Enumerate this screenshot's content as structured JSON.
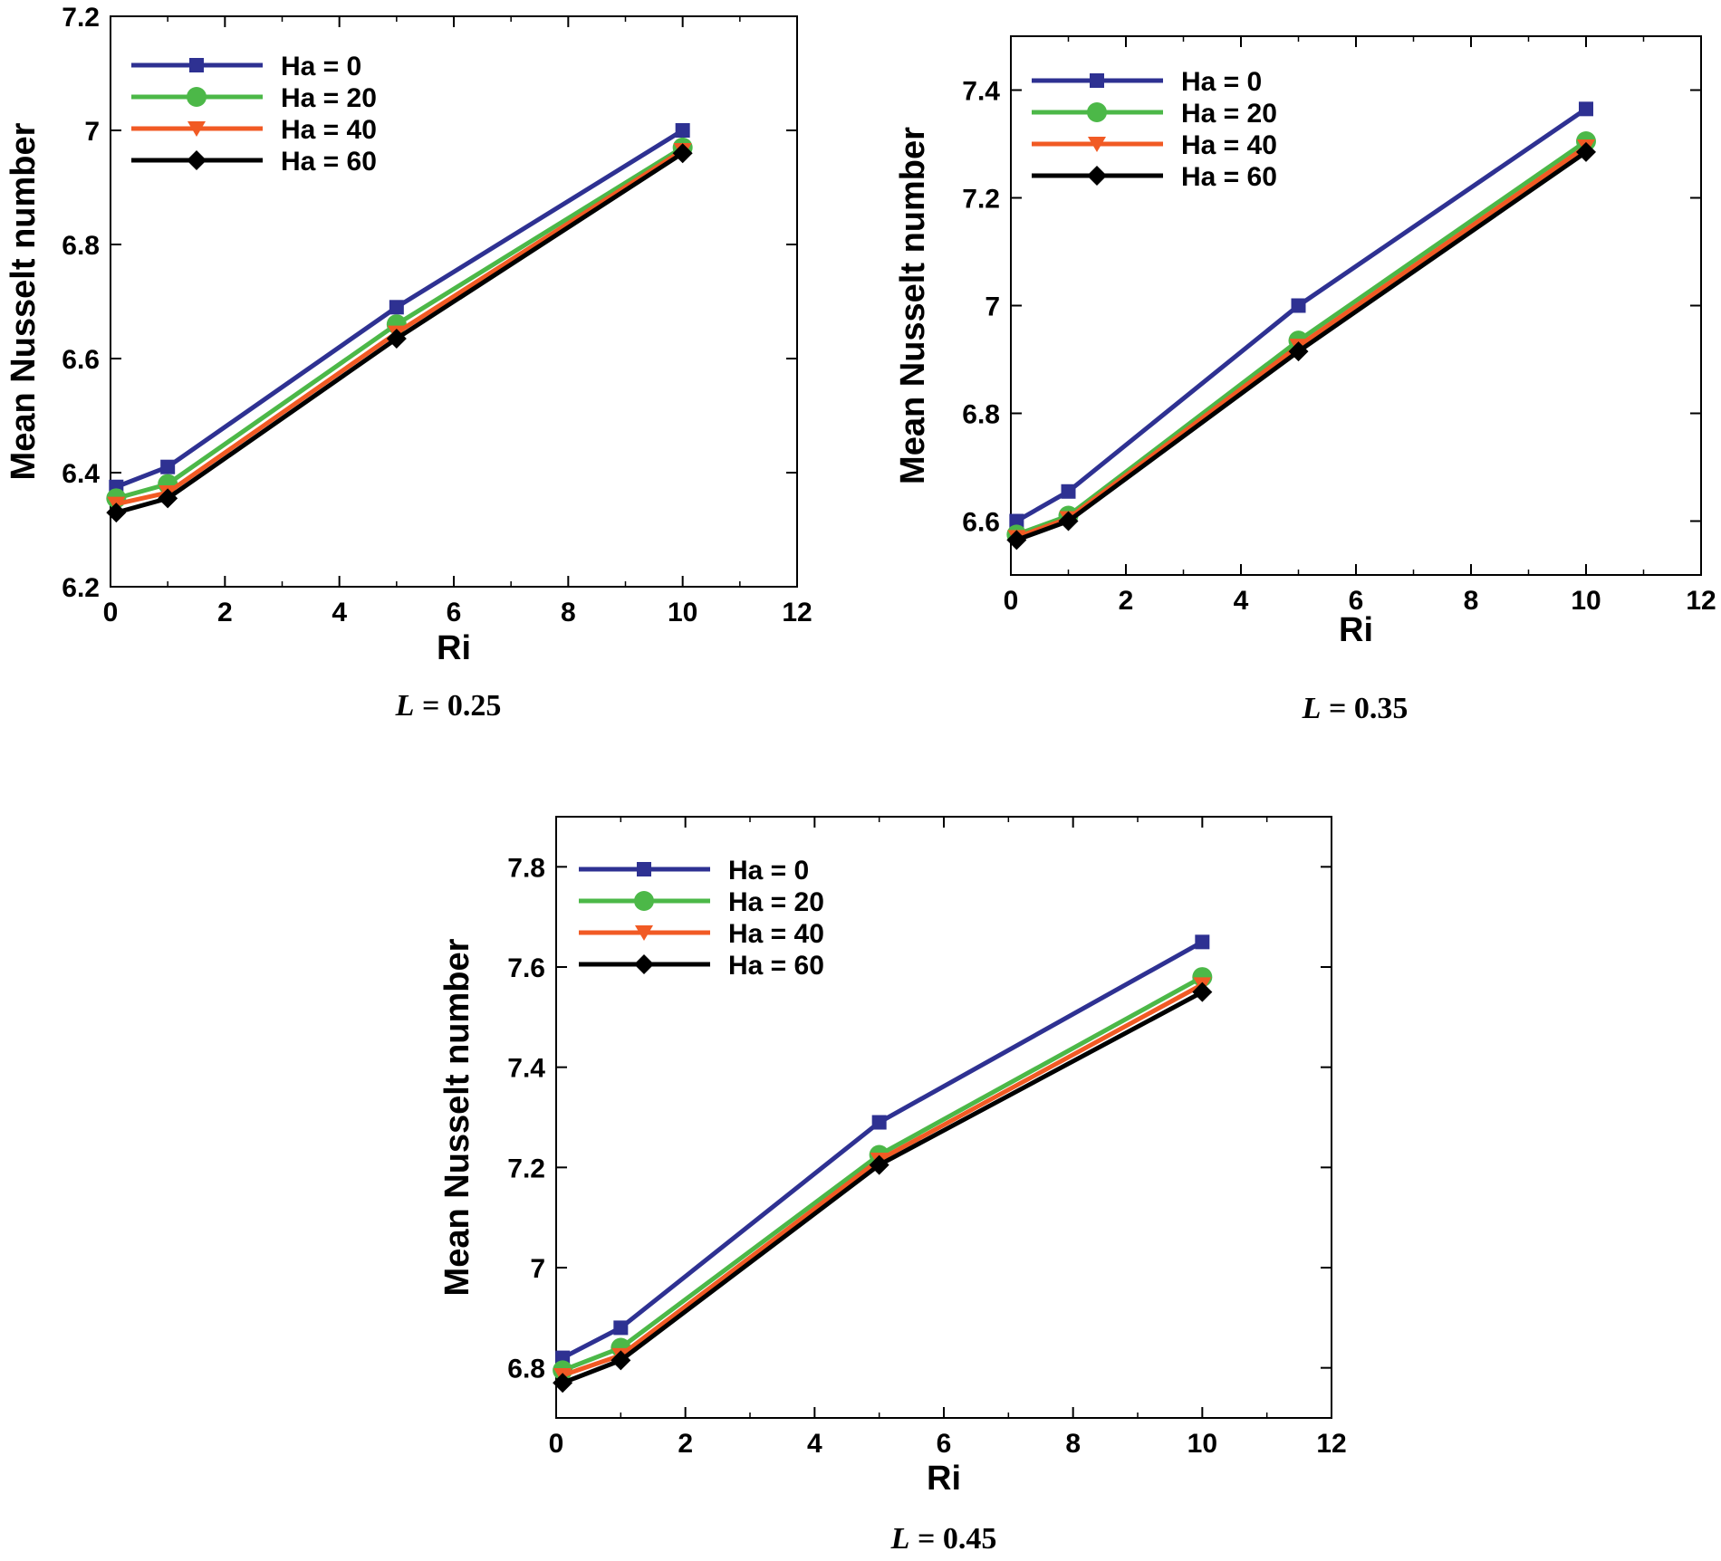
{
  "chart_data": [
    {
      "type": "line",
      "caption_var": "L",
      "caption_value": " = 0.25",
      "xlabel": "Ri",
      "ylabel": "Mean Nusselt number",
      "xlim": [
        0,
        12
      ],
      "ylim": [
        6.2,
        7.2
      ],
      "xticks": [
        0,
        2,
        4,
        6,
        8,
        10,
        12
      ],
      "yticks": [
        6.2,
        6.4,
        6.6,
        6.8,
        7.0,
        7.2
      ],
      "ytick_labels": [
        "6.2",
        "6.4",
        "6.6",
        "6.8",
        "7",
        "7.2"
      ],
      "x": [
        0.1,
        1,
        5,
        10
      ],
      "series": [
        {
          "name": "Ha = 0",
          "values": [
            6.375,
            6.41,
            6.69,
            7.0
          ],
          "color": "#2e3192",
          "marker": "square"
        },
        {
          "name": "Ha = 20",
          "values": [
            6.355,
            6.38,
            6.66,
            6.97
          ],
          "color": "#4cb848",
          "marker": "circle"
        },
        {
          "name": "Ha = 40",
          "values": [
            6.345,
            6.365,
            6.645,
            6.965
          ],
          "color": "#f15a24",
          "marker": "triangle-down"
        },
        {
          "name": "Ha = 60",
          "values": [
            6.33,
            6.355,
            6.635,
            6.96
          ],
          "color": "#000000",
          "marker": "diamond"
        }
      ]
    },
    {
      "type": "line",
      "caption_var": "L",
      "caption_value": " = 0.35",
      "xlabel": "Ri",
      "ylabel": "Mean Nusselt number",
      "xlim": [
        0,
        12
      ],
      "ylim": [
        6.5,
        7.5
      ],
      "xticks": [
        0,
        2,
        4,
        6,
        8,
        10,
        12
      ],
      "yticks": [
        6.6,
        6.8,
        7.0,
        7.2,
        7.4
      ],
      "ytick_labels": [
        "6.6",
        "6.8",
        "7",
        "7.2",
        "7.4"
      ],
      "x": [
        0.1,
        1,
        5,
        10
      ],
      "series": [
        {
          "name": "Ha = 0",
          "values": [
            6.6,
            6.655,
            7.0,
            7.365
          ],
          "color": "#2e3192",
          "marker": "square"
        },
        {
          "name": "Ha = 20",
          "values": [
            6.575,
            6.61,
            6.935,
            7.305
          ],
          "color": "#4cb848",
          "marker": "circle"
        },
        {
          "name": "Ha = 40",
          "values": [
            6.57,
            6.605,
            6.925,
            7.295
          ],
          "color": "#f15a24",
          "marker": "triangle-down"
        },
        {
          "name": "Ha = 60",
          "values": [
            6.565,
            6.6,
            6.915,
            7.285
          ],
          "color": "#000000",
          "marker": "diamond"
        }
      ]
    },
    {
      "type": "line",
      "caption_var": "L",
      "caption_value": " = 0.45",
      "xlabel": "Ri",
      "ylabel": "Mean Nusselt number",
      "xlim": [
        0,
        12
      ],
      "ylim": [
        6.7,
        7.9
      ],
      "xticks": [
        0,
        2,
        4,
        6,
        8,
        10,
        12
      ],
      "yticks": [
        6.8,
        7.0,
        7.2,
        7.4,
        7.6,
        7.8
      ],
      "ytick_labels": [
        "6.8",
        "7",
        "7.2",
        "7.4",
        "7.6",
        "7.8"
      ],
      "x": [
        0.1,
        1,
        5,
        10
      ],
      "series": [
        {
          "name": "Ha = 0",
          "values": [
            6.82,
            6.88,
            7.29,
            7.65
          ],
          "color": "#2e3192",
          "marker": "square"
        },
        {
          "name": "Ha = 20",
          "values": [
            6.795,
            6.84,
            7.225,
            7.58
          ],
          "color": "#4cb848",
          "marker": "circle"
        },
        {
          "name": "Ha = 40",
          "values": [
            6.785,
            6.825,
            7.215,
            7.565
          ],
          "color": "#f15a24",
          "marker": "triangle-down"
        },
        {
          "name": "Ha = 60",
          "values": [
            6.77,
            6.815,
            7.205,
            7.55
          ],
          "color": "#000000",
          "marker": "diamond"
        }
      ]
    }
  ]
}
